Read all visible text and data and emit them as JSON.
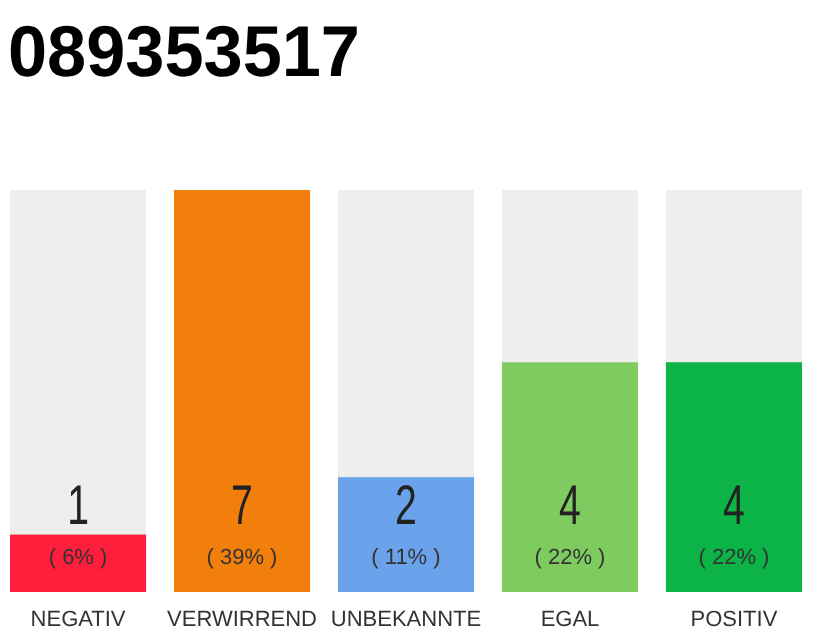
{
  "chart_data": {
    "type": "bar",
    "title": "089353517",
    "categories": [
      "NEGATIV",
      "VERWIRREND",
      "UNBEKANNTE",
      "EGAL",
      "POSITIV"
    ],
    "values": [
      1,
      7,
      2,
      4,
      4
    ],
    "colors": [
      "#ff1f3d",
      "#f27f0c",
      "#6aa3ec",
      "#7ecb5f",
      "#0cb347"
    ],
    "ylim": [
      0,
      7
    ],
    "tick_labels": "x",
    "data_labels": true,
    "annotations": [
      "( 6% )",
      "( 39% )",
      "( 11% )",
      "( 22% )",
      "( 22% )"
    ]
  }
}
